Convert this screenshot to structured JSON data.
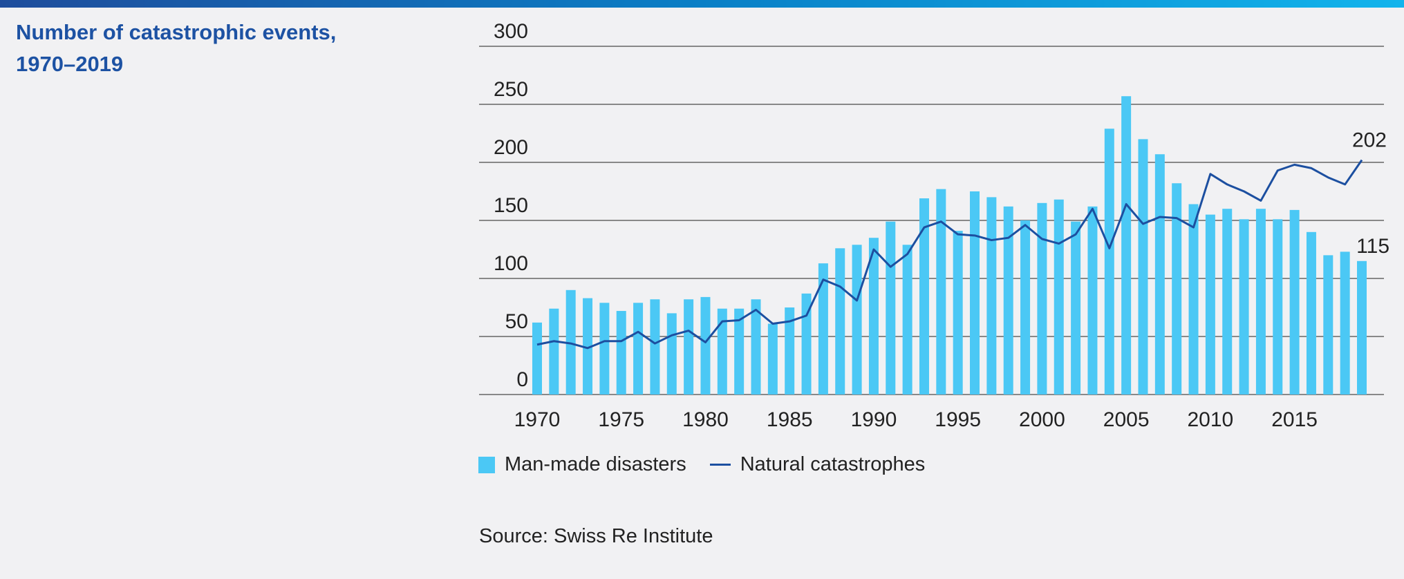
{
  "title_line1": "Number of catastrophic events,",
  "title_line2": "1970–2019",
  "source": "Source: Swiss Re Institute",
  "colors": {
    "bars": "#4bc8f5",
    "line": "#1c4fa0",
    "title": "#1d52a3",
    "grid": "#888888"
  },
  "chart_data": {
    "type": "bar+line",
    "title": "Number of catastrophic events, 1970–2019",
    "xlabel": "",
    "ylabel": "",
    "ylim": [
      0,
      300
    ],
    "yticks": [
      0,
      50,
      100,
      150,
      200,
      250,
      300
    ],
    "xticks": [
      1970,
      1975,
      1980,
      1985,
      1990,
      1995,
      2000,
      2005,
      2010,
      2015
    ],
    "grid": true,
    "legend_position": "bottom",
    "x": [
      1970,
      1971,
      1972,
      1973,
      1974,
      1975,
      1976,
      1977,
      1978,
      1979,
      1980,
      1981,
      1982,
      1983,
      1984,
      1985,
      1986,
      1987,
      1988,
      1989,
      1990,
      1991,
      1992,
      1993,
      1994,
      1995,
      1996,
      1997,
      1998,
      1999,
      2000,
      2001,
      2002,
      2003,
      2004,
      2005,
      2006,
      2007,
      2008,
      2009,
      2010,
      2011,
      2012,
      2013,
      2014,
      2015,
      2016,
      2017,
      2018,
      2019
    ],
    "series": [
      {
        "name": "Man-made disasters",
        "type": "bar",
        "values": [
          62,
          74,
          90,
          83,
          79,
          72,
          79,
          82,
          70,
          82,
          84,
          74,
          74,
          82,
          61,
          75,
          87,
          113,
          126,
          129,
          135,
          149,
          129,
          169,
          177,
          141,
          175,
          170,
          162,
          150,
          165,
          168,
          149,
          162,
          229,
          257,
          220,
          207,
          182,
          164,
          155,
          160,
          151,
          160,
          151,
          159,
          140,
          120,
          123,
          115
        ],
        "end_label": "115"
      },
      {
        "name": "Natural catastrophes",
        "type": "line",
        "values": [
          43,
          46,
          44,
          40,
          46,
          46,
          54,
          44,
          51,
          55,
          45,
          63,
          64,
          73,
          61,
          63,
          68,
          99,
          93,
          81,
          125,
          110,
          121,
          144,
          149,
          138,
          137,
          133,
          135,
          146,
          134,
          130,
          138,
          160,
          126,
          164,
          147,
          153,
          152,
          144,
          190,
          181,
          175,
          167,
          193,
          198,
          195,
          187,
          181,
          202
        ],
        "end_label": "202"
      }
    ]
  }
}
